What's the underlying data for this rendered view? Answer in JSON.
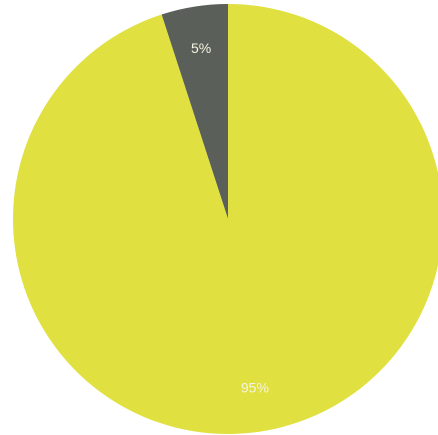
{
  "chart_data": {
    "type": "pie",
    "title": "",
    "categories": [
      "",
      ""
    ],
    "values": [
      5,
      95
    ],
    "labels": [
      "5%",
      "95%"
    ],
    "start_angle_deg": 0,
    "direction": "counterclockwise",
    "colors": [
      "#5a5f5a",
      "#e0e040"
    ],
    "legend": "none"
  }
}
